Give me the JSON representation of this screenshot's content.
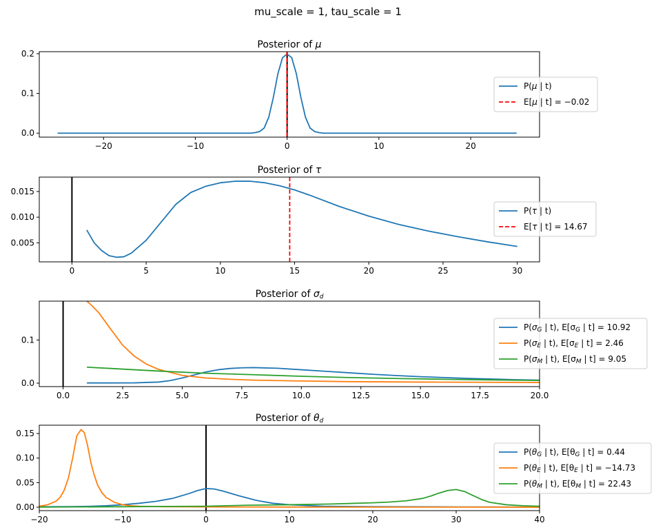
{
  "suptitle": "mu_scale = 1, tau_scale = 1",
  "chart_data": [
    {
      "type": "line",
      "title": {
        "base": "Posterior of ",
        "sym": "μ",
        "sub": ""
      },
      "xlim": [
        -27,
        27.5
      ],
      "ylim": [
        -0.01,
        0.205
      ],
      "xticks": [
        -20,
        -10,
        0,
        10,
        20
      ],
      "yticks": [
        0.0,
        0.1,
        0.2
      ],
      "ytick_labels": [
        "0.0",
        "0.1",
        "0.2"
      ],
      "xtick_labels": [
        "−20",
        "−10",
        "0",
        "10",
        "20"
      ],
      "vline_zero": true,
      "series": [
        {
          "kind": "curve",
          "color": "#1f77b4",
          "legend": {
            "pre": "P(",
            "sym": "μ",
            "sub": "",
            "post": " | t)"
          },
          "x": [
            -25,
            -4,
            -3.5,
            -3,
            -2.5,
            -2,
            -1.5,
            -1,
            -0.5,
            0,
            0.5,
            1,
            1.5,
            2,
            2.5,
            3,
            3.5,
            4,
            25
          ],
          "y": [
            0,
            0,
            0.0012,
            0.004,
            0.013,
            0.04,
            0.09,
            0.15,
            0.19,
            0.199,
            0.19,
            0.15,
            0.09,
            0.04,
            0.013,
            0.004,
            0.0012,
            0,
            0
          ]
        },
        {
          "kind": "vline",
          "color": "#ff0000",
          "value": -0.02,
          "legend": {
            "pre": "E[",
            "sym": "μ",
            "sub": "",
            "post": " | t] = −0.02"
          }
        }
      ]
    },
    {
      "type": "line",
      "title": {
        "base": "Posterior of ",
        "sym": "τ",
        "sub": ""
      },
      "xlim": [
        -2.2,
        31.5
      ],
      "ylim": [
        0.0013,
        0.0178
      ],
      "xticks": [
        0,
        5,
        10,
        15,
        20,
        25,
        30
      ],
      "yticks": [
        0.005,
        0.01,
        0.015
      ],
      "ytick_labels": [
        "0.005",
        "0.010",
        "0.015"
      ],
      "xtick_labels": [
        "0",
        "5",
        "10",
        "15",
        "20",
        "25",
        "30"
      ],
      "vline_zero": true,
      "series": [
        {
          "kind": "curve",
          "color": "#1f77b4",
          "legend": {
            "pre": "P(",
            "sym": "τ",
            "sub": "",
            "post": " | t)"
          },
          "x": [
            1,
            1.5,
            2,
            2.5,
            3,
            3.5,
            4,
            5,
            6,
            7,
            8,
            9,
            10,
            11,
            12,
            13,
            14,
            15,
            16,
            18,
            20,
            22,
            24,
            26,
            28,
            30
          ],
          "y": [
            0.0075,
            0.005,
            0.0035,
            0.0025,
            0.0022,
            0.0023,
            0.003,
            0.0055,
            0.009,
            0.0125,
            0.0148,
            0.016,
            0.0167,
            0.017,
            0.017,
            0.0167,
            0.0161,
            0.0153,
            0.0143,
            0.0121,
            0.0102,
            0.0086,
            0.0073,
            0.0062,
            0.0052,
            0.0043
          ]
        },
        {
          "kind": "vline",
          "color": "#ff0000",
          "value": 14.67,
          "legend": {
            "pre": "E[",
            "sym": "τ",
            "sub": "",
            "post": " | t] = 14.67"
          }
        }
      ]
    },
    {
      "type": "line",
      "title": {
        "base": "Posterior of ",
        "sym": "σ",
        "sub": "d"
      },
      "xlim": [
        -1,
        20
      ],
      "ylim": [
        -0.008,
        0.19
      ],
      "xticks": [
        0.0,
        2.5,
        5.0,
        7.5,
        10.0,
        12.5,
        15.0,
        17.5,
        20.0
      ],
      "yticks": [
        0.0,
        0.1
      ],
      "ytick_labels": [
        "0.0",
        "0.1"
      ],
      "xtick_labels": [
        "0.0",
        "2.5",
        "5.0",
        "7.5",
        "10.0",
        "12.5",
        "15.0",
        "17.5",
        "20.0"
      ],
      "vline_zero": true,
      "series": [
        {
          "kind": "curve",
          "color": "#1f77b4",
          "legend": {
            "pre": "P(",
            "sym": "σ",
            "sub": "G",
            "post": " | t),  E[σ",
            "sub2": "G",
            "post2": " | t] = 10.92"
          },
          "x": [
            1,
            2,
            3,
            4,
            4.5,
            5,
            5.5,
            6,
            6.5,
            7,
            7.5,
            8,
            9,
            10,
            11,
            12,
            13,
            14,
            15,
            16,
            17,
            18,
            19,
            20
          ],
          "y": [
            0.0005,
            0.0005,
            0.0007,
            0.0025,
            0.006,
            0.012,
            0.019,
            0.026,
            0.031,
            0.034,
            0.0355,
            0.036,
            0.0345,
            0.031,
            0.0275,
            0.024,
            0.0205,
            0.0175,
            0.015,
            0.013,
            0.011,
            0.0095,
            0.008,
            0.007
          ]
        },
        {
          "kind": "curve",
          "color": "#ff7f0e",
          "legend": {
            "pre": "P(",
            "sym": "σ",
            "sub": "E",
            "post": " | t),  E[σ",
            "sub2": "E",
            "post2": " | t] = 2.46"
          },
          "x": [
            1,
            1.2,
            1.5,
            2,
            2.5,
            3,
            3.5,
            4,
            5,
            6,
            7,
            8,
            10,
            12,
            15,
            20
          ],
          "y": [
            0.19,
            0.18,
            0.163,
            0.125,
            0.088,
            0.062,
            0.044,
            0.032,
            0.018,
            0.012,
            0.009,
            0.007,
            0.005,
            0.0035,
            0.0025,
            0.0015
          ]
        },
        {
          "kind": "curve",
          "color": "#2ca02c",
          "legend": {
            "pre": "P(",
            "sym": "σ",
            "sub": "M",
            "post": " | t),  E[σ",
            "sub2": "M",
            "post2": " | t] = 9.05"
          },
          "x": [
            1,
            2,
            4,
            6,
            8,
            10,
            12,
            14,
            16,
            18,
            20
          ],
          "y": [
            0.037,
            0.034,
            0.028,
            0.023,
            0.0195,
            0.016,
            0.013,
            0.0108,
            0.009,
            0.0075,
            0.0062
          ]
        }
      ]
    },
    {
      "type": "line",
      "title": {
        "base": "Posterior of ",
        "sym": "θ",
        "sub": "d"
      },
      "xlim": [
        -20,
        40
      ],
      "ylim": [
        -0.007,
        0.167
      ],
      "xticks": [
        -20,
        -10,
        0,
        10,
        20,
        30,
        40
      ],
      "yticks": [
        0.0,
        0.05,
        0.1,
        0.15
      ],
      "ytick_labels": [
        "0.00",
        "0.05",
        "0.10",
        "0.15"
      ],
      "xtick_labels": [
        "−20",
        "−10",
        "0",
        "10",
        "20",
        "30",
        "40"
      ],
      "vline_zero": true,
      "series": [
        {
          "kind": "curve",
          "color": "#1f77b4",
          "legend": {
            "pre": "P(",
            "sym": "θ",
            "sub": "G",
            "post": " | t),  E[θ",
            "sub2": "G",
            "post2": " | t] = 0.44"
          },
          "x": [
            -20,
            -16,
            -14,
            -12,
            -10,
            -8,
            -6,
            -4,
            -2,
            -1,
            0,
            1,
            2,
            4,
            6,
            8,
            10,
            14,
            20,
            30,
            40
          ],
          "y": [
            0.0008,
            0.0012,
            0.0018,
            0.003,
            0.005,
            0.008,
            0.012,
            0.018,
            0.028,
            0.034,
            0.038,
            0.037,
            0.033,
            0.023,
            0.014,
            0.008,
            0.005,
            0.002,
            0.001,
            0.0005,
            0.0003
          ]
        },
        {
          "kind": "curve",
          "color": "#ff7f0e",
          "legend": {
            "pre": "P(",
            "sym": "θ",
            "sub": "E",
            "post": " | t),  E[θ",
            "sub2": "E",
            "post2": " | t] = −14.73"
          },
          "x": [
            -20,
            -19,
            -18,
            -17.5,
            -17,
            -16.5,
            -16,
            -15.5,
            -15,
            -14.6,
            -14.2,
            -13.8,
            -13.4,
            -13,
            -12.5,
            -12,
            -11,
            -10,
            -9,
            -8,
            -5,
            0,
            10,
            20,
            40
          ],
          "y": [
            0.002,
            0.005,
            0.012,
            0.02,
            0.035,
            0.06,
            0.1,
            0.145,
            0.158,
            0.152,
            0.125,
            0.09,
            0.065,
            0.045,
            0.03,
            0.02,
            0.01,
            0.005,
            0.003,
            0.002,
            0.001,
            0.0005,
            0.0003,
            0.0002,
            0.0001
          ]
        },
        {
          "kind": "curve",
          "color": "#2ca02c",
          "legend": {
            "pre": "P(",
            "sym": "θ",
            "sub": "M",
            "post": " | t),  E[θ",
            "sub2": "M",
            "post2": " | t] = 22.43"
          },
          "x": [
            -20,
            -10,
            0,
            5,
            10,
            15,
            20,
            22,
            24,
            26,
            27,
            28,
            29,
            30,
            31,
            32,
            33,
            34,
            36,
            38,
            40
          ],
          "y": [
            0.0002,
            0.001,
            0.002,
            0.004,
            0.005,
            0.0065,
            0.009,
            0.0105,
            0.013,
            0.018,
            0.023,
            0.029,
            0.034,
            0.036,
            0.032,
            0.024,
            0.016,
            0.01,
            0.005,
            0.003,
            0.002
          ]
        }
      ]
    }
  ]
}
